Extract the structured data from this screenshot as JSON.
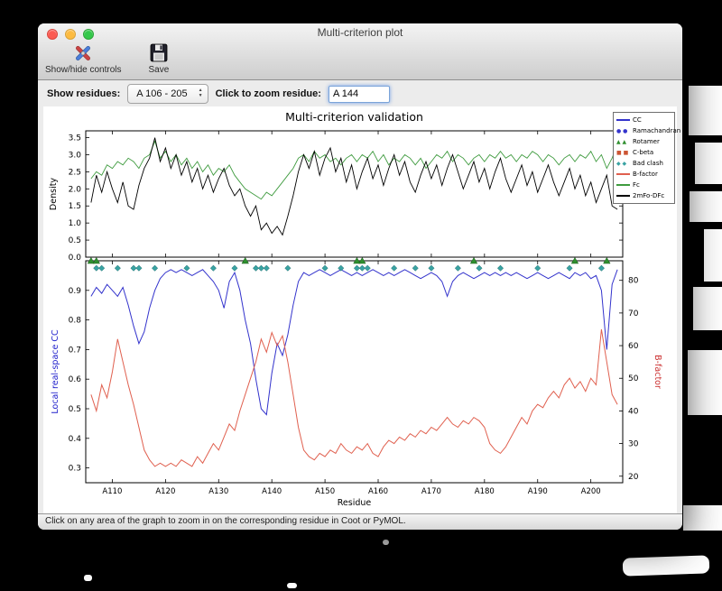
{
  "window": {
    "title": "Multi-criterion plot",
    "toolbar": {
      "show_hide_label": "Show/hide controls",
      "save_label": "Save"
    },
    "controls": {
      "show_residues_label": "Show residues:",
      "residue_range_value": "A 106 - 205",
      "zoom_residue_label": "Click to zoom residue:",
      "zoom_residue_value": "A 144"
    },
    "status_bar": "Click on any area of the graph to zoom in on the corresponding residue in Coot or PyMOL."
  },
  "figure": {
    "legend": {
      "items": [
        {
          "label": "CC",
          "marker": "line",
          "color": "#3333cc"
        },
        {
          "label": "Ramachandran",
          "marker": "circles",
          "color": "#3333cc"
        },
        {
          "label": "Rotamer",
          "marker": "triangles",
          "color": "#2f8f2f"
        },
        {
          "label": "C-beta",
          "marker": "squares",
          "color": "#cc5533"
        },
        {
          "label": "Bad clash",
          "marker": "diamonds",
          "color": "#3aa3a3"
        },
        {
          "label": "B-factor",
          "marker": "line",
          "color": "#e0604f"
        },
        {
          "label": "Fc",
          "marker": "line",
          "color": "#3f9b3f"
        },
        {
          "label": "2mFo-DFc",
          "marker": "line",
          "color": "#000000"
        }
      ]
    }
  },
  "chart_data": [
    {
      "type": "line",
      "title": "Multi-criterion validation",
      "ylabel": "Density",
      "ylim": [
        0,
        3.7
      ],
      "yticks": [
        0.0,
        0.5,
        1.0,
        1.5,
        2.0,
        2.5,
        3.0,
        3.5
      ],
      "xlim": [
        105,
        206
      ],
      "x_start": 106,
      "series": [
        {
          "name": "Fc",
          "color": "#3f9b3f",
          "values": [
            2.3,
            2.5,
            2.4,
            2.7,
            2.6,
            2.8,
            2.7,
            2.9,
            2.8,
            2.6,
            2.9,
            3.0,
            3.4,
            2.9,
            3.1,
            2.8,
            3.0,
            2.7,
            2.9,
            2.6,
            2.8,
            2.5,
            2.7,
            2.4,
            2.6,
            2.5,
            2.7,
            2.4,
            2.2,
            2.0,
            1.9,
            1.8,
            1.7,
            1.9,
            1.8,
            2.0,
            2.2,
            2.4,
            2.6,
            2.9,
            3.0,
            2.8,
            3.1,
            2.9,
            3.0,
            2.8,
            2.9,
            2.7,
            2.9,
            3.0,
            2.8,
            3.0,
            2.9,
            3.1,
            2.8,
            3.0,
            2.7,
            2.9,
            2.8,
            3.0,
            2.9,
            2.7,
            2.9,
            2.6,
            2.8,
            3.0,
            2.9,
            3.1,
            2.8,
            3.0,
            2.9,
            2.7,
            2.9,
            3.0,
            2.8,
            3.0,
            2.9,
            3.1,
            2.9,
            3.0,
            2.8,
            3.0,
            2.9,
            3.1,
            3.0,
            2.8,
            3.0,
            2.9,
            2.7,
            2.9,
            3.0,
            2.8,
            3.0,
            2.9,
            3.1,
            2.8,
            3.0,
            2.6,
            2.9,
            3.3
          ]
        },
        {
          "name": "2mFo-DFc",
          "color": "#000000",
          "values": [
            1.6,
            2.4,
            1.9,
            2.5,
            2.0,
            1.6,
            2.2,
            1.5,
            1.4,
            2.1,
            2.6,
            2.9,
            3.5,
            2.8,
            3.2,
            2.6,
            3.0,
            2.4,
            2.8,
            2.2,
            2.6,
            2.0,
            2.4,
            1.9,
            2.3,
            2.6,
            2.1,
            1.8,
            2.0,
            1.5,
            1.2,
            1.5,
            0.8,
            1.0,
            0.7,
            0.9,
            0.65,
            1.2,
            1.8,
            2.5,
            3.0,
            2.6,
            3.1,
            2.4,
            2.9,
            3.2,
            2.5,
            2.9,
            2.2,
            2.7,
            2.0,
            2.5,
            2.9,
            2.3,
            2.7,
            2.1,
            2.6,
            3.0,
            2.4,
            2.8,
            2.2,
            1.9,
            2.4,
            2.8,
            2.3,
            2.7,
            2.1,
            2.6,
            3.0,
            2.5,
            2.0,
            2.4,
            2.8,
            2.2,
            2.6,
            2.0,
            2.5,
            2.9,
            2.3,
            1.9,
            2.3,
            2.7,
            2.1,
            2.5,
            1.9,
            2.3,
            2.7,
            2.2,
            1.8,
            2.2,
            2.6,
            2.0,
            2.4,
            1.8,
            2.2,
            1.6,
            2.0,
            2.4,
            1.5,
            1.4
          ]
        }
      ]
    },
    {
      "type": "line+scatter",
      "ylabel_left": "Local real-space CC",
      "ylabel_right": "B-factor",
      "xlabel": "Residue",
      "ylim_left": [
        0.25,
        1.0
      ],
      "ylim_right": [
        18,
        86
      ],
      "yticks_left": [
        0.3,
        0.4,
        0.5,
        0.6,
        0.7,
        0.8,
        0.9
      ],
      "yticks_right": [
        20,
        30,
        40,
        50,
        60,
        70,
        80
      ],
      "xlim": [
        105,
        206
      ],
      "x_start": 106,
      "xticks": [
        110,
        120,
        130,
        140,
        150,
        160,
        170,
        180,
        190,
        200
      ],
      "xtick_labels": [
        "A110",
        "A120",
        "A130",
        "A140",
        "A150",
        "A160",
        "A170",
        "A180",
        "A190",
        "A200"
      ],
      "series": [
        {
          "name": "CC",
          "axis": "left",
          "color": "#3333cc",
          "values": [
            0.88,
            0.91,
            0.89,
            0.92,
            0.9,
            0.88,
            0.91,
            0.85,
            0.78,
            0.72,
            0.76,
            0.84,
            0.9,
            0.94,
            0.96,
            0.97,
            0.96,
            0.97,
            0.96,
            0.95,
            0.96,
            0.97,
            0.95,
            0.93,
            0.9,
            0.84,
            0.93,
            0.96,
            0.9,
            0.8,
            0.72,
            0.6,
            0.5,
            0.48,
            0.62,
            0.72,
            0.68,
            0.75,
            0.85,
            0.93,
            0.96,
            0.95,
            0.96,
            0.97,
            0.96,
            0.95,
            0.96,
            0.97,
            0.96,
            0.95,
            0.96,
            0.95,
            0.96,
            0.97,
            0.96,
            0.95,
            0.96,
            0.95,
            0.96,
            0.97,
            0.96,
            0.95,
            0.94,
            0.95,
            0.96,
            0.95,
            0.93,
            0.88,
            0.93,
            0.95,
            0.96,
            0.95,
            0.94,
            0.95,
            0.96,
            0.95,
            0.96,
            0.95,
            0.96,
            0.95,
            0.96,
            0.95,
            0.94,
            0.95,
            0.96,
            0.95,
            0.94,
            0.95,
            0.96,
            0.95,
            0.94,
            0.96,
            0.95,
            0.96,
            0.94,
            0.95,
            0.9,
            0.7,
            0.92,
            0.97
          ]
        },
        {
          "name": "B-factor",
          "axis": "right",
          "color": "#e0604f",
          "values": [
            45,
            40,
            48,
            44,
            52,
            62,
            55,
            48,
            42,
            35,
            28,
            25,
            23,
            24,
            23,
            24,
            23,
            25,
            24,
            23,
            26,
            24,
            27,
            30,
            28,
            32,
            36,
            34,
            40,
            45,
            50,
            55,
            62,
            58,
            64,
            60,
            63,
            55,
            45,
            35,
            28,
            26,
            25,
            27,
            26,
            28,
            27,
            30,
            28,
            27,
            29,
            28,
            30,
            27,
            26,
            29,
            31,
            30,
            32,
            31,
            33,
            32,
            34,
            33,
            35,
            34,
            36,
            38,
            36,
            35,
            37,
            36,
            38,
            37,
            35,
            30,
            28,
            27,
            29,
            32,
            35,
            38,
            36,
            40,
            42,
            41,
            44,
            46,
            44,
            48,
            50,
            47,
            49,
            46,
            50,
            48,
            65,
            55,
            45,
            42
          ]
        }
      ],
      "markers": [
        {
          "name": "Bad clash",
          "shape": "diamond",
          "color": "#3aa3a3",
          "y": 0.975,
          "residues": [
            107,
            108,
            111,
            114,
            115,
            118,
            124,
            129,
            133,
            137,
            138,
            139,
            143,
            150,
            153,
            156,
            157,
            158,
            163,
            167,
            170,
            175,
            179,
            183,
            190,
            196,
            202
          ]
        },
        {
          "name": "Rotamer",
          "shape": "triangle",
          "color": "#2f8f2f",
          "y": 1.0,
          "residues": [
            106,
            107,
            135,
            156,
            157,
            178,
            197,
            203
          ]
        }
      ]
    }
  ]
}
